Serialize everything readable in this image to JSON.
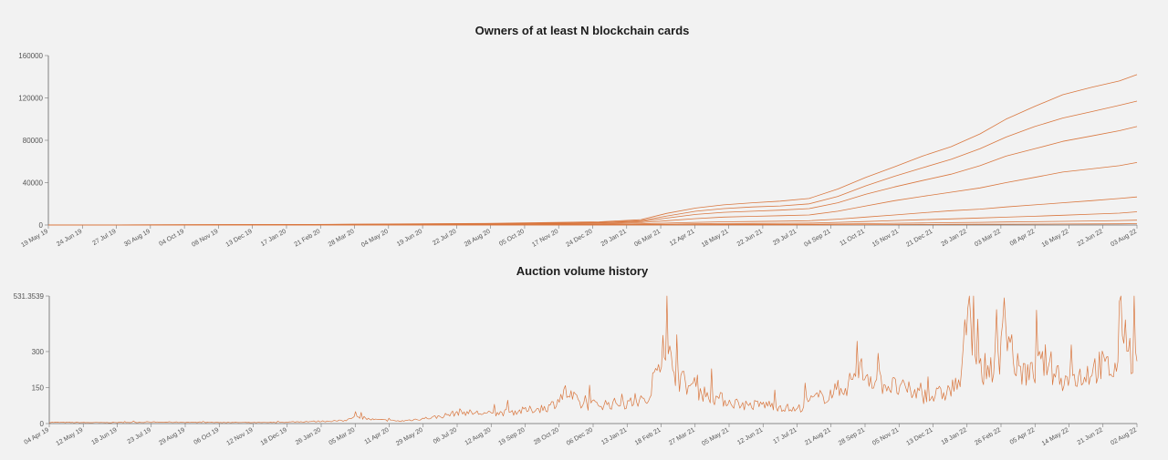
{
  "charts": [
    {
      "title": "Owners of at least N blockchain cards"
    },
    {
      "title": "Auction volume history"
    }
  ],
  "accent_color": "#d9773f",
  "background_color": "#f2f2f2",
  "chart_data": [
    {
      "type": "line",
      "title": "Owners of at least N blockchain cards",
      "xlabel": "",
      "ylabel": "",
      "x_range": [
        "2019-05-19",
        "2022-08-03"
      ],
      "ylim": [
        0,
        160000
      ],
      "y_ticks": [
        0,
        40000,
        80000,
        120000,
        160000
      ],
      "x_tick_labels": [
        "19 May 19",
        "24 Jun 19",
        "27 Jul 19",
        "30 Aug 19",
        "04 Oct 19",
        "08 Nov 19",
        "13 Dec 19",
        "17 Jan 20",
        "21 Feb 20",
        "28 Mar 20",
        "04 May 20",
        "19 Jun 20",
        "22 Jul 20",
        "28 Aug 20",
        "05 Oct 20",
        "17 Nov 20",
        "24 Dec 20",
        "29 Jan 21",
        "06 Mar 21",
        "12 Apr 21",
        "18 May 21",
        "22 Jun 21",
        "29 Jul 21",
        "04 Sep 21",
        "11 Oct 21",
        "15 Nov 21",
        "21 Dec 21",
        "26 Jan 22",
        "03 Mar 22",
        "08 Apr 22",
        "16 May 22",
        "22 Jun 22",
        "03 Aug 22"
      ],
      "grid": false,
      "legend": "none",
      "series": [
        {
          "x": [
            "2019-05-19",
            "2020-03-01",
            "2020-09-01",
            "2021-01-01",
            "2021-02-15",
            "2021-03-15",
            "2021-04-15",
            "2021-05-15",
            "2021-06-15",
            "2021-07-15",
            "2021-08-15",
            "2021-09-15",
            "2021-10-15",
            "2021-11-15",
            "2021-12-15",
            "2022-01-15",
            "2022-02-15",
            "2022-03-15",
            "2022-04-15",
            "2022-05-15",
            "2022-06-15",
            "2022-07-15",
            "2022-08-03"
          ],
          "values": [
            0,
            500,
            1500,
            3000,
            5000,
            11000,
            16000,
            19000,
            21000,
            22500,
            25000,
            34000,
            45000,
            55000,
            65000,
            74000,
            86000,
            100000,
            112000,
            123000,
            130000,
            136000,
            142000
          ]
        },
        {
          "x": [
            "2019-05-19",
            "2020-03-01",
            "2020-09-01",
            "2021-01-01",
            "2021-02-15",
            "2021-03-15",
            "2021-04-15",
            "2021-05-15",
            "2021-06-15",
            "2021-07-15",
            "2021-08-15",
            "2021-09-15",
            "2021-10-15",
            "2021-11-15",
            "2021-12-15",
            "2022-01-15",
            "2022-02-15",
            "2022-03-15",
            "2022-04-15",
            "2022-05-15",
            "2022-06-15",
            "2022-07-15",
            "2022-08-03"
          ],
          "values": [
            0,
            400,
            1200,
            2500,
            4000,
            8500,
            13000,
            15500,
            17000,
            18000,
            20000,
            27000,
            37000,
            46000,
            54000,
            62000,
            72000,
            83000,
            93000,
            101000,
            107000,
            113000,
            117000
          ]
        },
        {
          "x": [
            "2019-05-19",
            "2020-03-01",
            "2020-09-01",
            "2021-01-01",
            "2021-02-15",
            "2021-03-15",
            "2021-04-15",
            "2021-05-15",
            "2021-06-15",
            "2021-07-15",
            "2021-08-15",
            "2021-09-15",
            "2021-10-15",
            "2021-11-15",
            "2021-12-15",
            "2022-01-15",
            "2022-02-15",
            "2022-03-15",
            "2022-04-15",
            "2022-05-15",
            "2022-06-15",
            "2022-07-15",
            "2022-08-03"
          ],
          "values": [
            0,
            300,
            900,
            2000,
            3200,
            6500,
            10000,
            12000,
            13000,
            14000,
            15500,
            21000,
            29000,
            36000,
            42000,
            48000,
            56000,
            65000,
            72000,
            79000,
            84000,
            89000,
            93000
          ]
        },
        {
          "x": [
            "2019-05-19",
            "2020-03-01",
            "2020-09-01",
            "2021-01-01",
            "2021-02-15",
            "2021-03-15",
            "2021-04-15",
            "2021-05-15",
            "2021-06-15",
            "2021-07-15",
            "2021-08-15",
            "2021-09-15",
            "2021-10-15",
            "2021-11-15",
            "2021-12-15",
            "2022-01-15",
            "2022-02-15",
            "2022-03-15",
            "2022-04-15",
            "2022-05-15",
            "2022-06-15",
            "2022-07-15",
            "2022-08-03"
          ],
          "values": [
            0,
            200,
            600,
            1300,
            2200,
            4000,
            6000,
            7500,
            8200,
            8800,
            9500,
            13000,
            18000,
            23000,
            27000,
            31000,
            35000,
            40000,
            45000,
            50000,
            53000,
            56000,
            59000
          ]
        },
        {
          "x": [
            "2019-05-19",
            "2020-03-01",
            "2020-09-01",
            "2021-01-01",
            "2021-02-15",
            "2021-03-15",
            "2021-04-15",
            "2021-05-15",
            "2021-06-15",
            "2021-07-15",
            "2021-08-15",
            "2021-09-15",
            "2021-10-15",
            "2021-11-15",
            "2021-12-15",
            "2022-01-15",
            "2022-02-15",
            "2022-03-15",
            "2022-04-15",
            "2022-05-15",
            "2022-06-15",
            "2022-07-15",
            "2022-08-03"
          ],
          "values": [
            0,
            100,
            300,
            700,
            1100,
            1800,
            2500,
            3000,
            3300,
            3600,
            4000,
            5500,
            7500,
            9500,
            11500,
            13500,
            15000,
            17000,
            19000,
            21000,
            23000,
            25000,
            26500
          ]
        },
        {
          "x": [
            "2019-05-19",
            "2020-03-01",
            "2020-09-01",
            "2021-01-01",
            "2021-02-15",
            "2021-03-15",
            "2021-04-15",
            "2021-05-15",
            "2021-06-15",
            "2021-07-15",
            "2021-08-15",
            "2021-09-15",
            "2021-10-15",
            "2021-11-15",
            "2021-12-15",
            "2022-01-15",
            "2022-02-15",
            "2022-03-15",
            "2022-04-15",
            "2022-05-15",
            "2022-06-15",
            "2022-07-15",
            "2022-08-03"
          ],
          "values": [
            0,
            50,
            150,
            300,
            500,
            800,
            1100,
            1300,
            1450,
            1600,
            1800,
            2500,
            3300,
            4200,
            5000,
            5800,
            6600,
            7400,
            8300,
            9200,
            10200,
            11200,
            12500
          ]
        },
        {
          "x": [
            "2019-05-19",
            "2020-03-01",
            "2020-09-01",
            "2021-01-01",
            "2021-02-15",
            "2021-03-15",
            "2021-04-15",
            "2021-05-15",
            "2021-06-15",
            "2021-07-15",
            "2021-08-15",
            "2021-09-15",
            "2021-10-15",
            "2021-11-15",
            "2021-12-15",
            "2022-01-15",
            "2022-02-15",
            "2022-03-15",
            "2022-04-15",
            "2022-05-15",
            "2022-06-15",
            "2022-07-15",
            "2022-08-03"
          ],
          "values": [
            0,
            20,
            60,
            120,
            200,
            300,
            420,
            500,
            560,
            620,
            700,
            950,
            1250,
            1600,
            1900,
            2200,
            2500,
            2800,
            3100,
            3400,
            3800,
            4200,
            4600
          ]
        },
        {
          "x": [
            "2019-05-19",
            "2020-03-01",
            "2020-09-01",
            "2021-01-01",
            "2021-02-15",
            "2021-03-15",
            "2021-04-15",
            "2021-05-15",
            "2021-06-15",
            "2021-07-15",
            "2021-08-15",
            "2021-09-15",
            "2021-10-15",
            "2021-11-15",
            "2021-12-15",
            "2022-01-15",
            "2022-02-15",
            "2022-03-15",
            "2022-04-15",
            "2022-05-15",
            "2022-06-15",
            "2022-07-15",
            "2022-08-03"
          ],
          "values": [
            0,
            5,
            15,
            30,
            50,
            80,
            110,
            130,
            150,
            170,
            190,
            260,
            340,
            430,
            520,
            600,
            680,
            760,
            850,
            940,
            1040,
            1140,
            1250
          ]
        }
      ]
    },
    {
      "type": "line",
      "title": "Auction volume history",
      "xlabel": "",
      "ylabel": "",
      "x_range": [
        "2019-04-04",
        "2022-08-02"
      ],
      "ylim": [
        0,
        531.3539
      ],
      "y_ticks": [
        0,
        150,
        300,
        531.3539
      ],
      "y_tick_labels": [
        "0",
        "150",
        "300",
        "531.3539"
      ],
      "x_tick_labels": [
        "04 Apr 19",
        "12 May 19",
        "18 Jun 19",
        "23 Jul 19",
        "29 Aug 19",
        "06 Oct 19",
        "12 Nov 19",
        "18 Dec 19",
        "26 Jan 20",
        "05 Mar 20",
        "11 Apr 20",
        "29 May 20",
        "06 Jul 20",
        "12 Aug 20",
        "19 Sep 20",
        "28 Oct 20",
        "06 Dec 20",
        "13 Jan 21",
        "18 Feb 21",
        "27 Mar 21",
        "05 May 21",
        "12 Jun 21",
        "17 Jul 21",
        "21 Aug 21",
        "28 Sep 21",
        "05 Nov 21",
        "13 Dec 21",
        "18 Jan 22",
        "26 Feb 22",
        "05 Apr 22",
        "14 May 22",
        "21 Jun 22",
        "02 Aug 22"
      ],
      "grid": false,
      "legend": "none",
      "series": [
        {
          "x": [
            "2019-04-04",
            "2019-06-01",
            "2019-08-01",
            "2019-10-01",
            "2019-12-01",
            "2020-01-15",
            "2020-03-01",
            "2020-03-05",
            "2020-04-01",
            "2020-05-01",
            "2020-05-29",
            "2020-06-15",
            "2020-07-06",
            "2020-08-12",
            "2020-09-19",
            "2020-10-15",
            "2020-11-01",
            "2020-11-20",
            "2020-12-06",
            "2021-01-13",
            "2021-02-05",
            "2021-02-18",
            "2021-02-24",
            "2021-03-01",
            "2021-03-10",
            "2021-03-27",
            "2021-04-15",
            "2021-05-05",
            "2021-05-25",
            "2021-06-12",
            "2021-07-01",
            "2021-07-17",
            "2021-08-01",
            "2021-08-21",
            "2021-09-10",
            "2021-09-28",
            "2021-10-15",
            "2021-11-05",
            "2021-11-25",
            "2021-12-13",
            "2022-01-01",
            "2022-01-18",
            "2022-01-25",
            "2022-02-05",
            "2022-02-26",
            "2022-03-10",
            "2022-03-20",
            "2022-04-05",
            "2022-04-20",
            "2022-05-14",
            "2022-06-01",
            "2022-06-21",
            "2022-07-10",
            "2022-07-15",
            "2022-07-25",
            "2022-08-02"
          ],
          "values": [
            5,
            4,
            6,
            5,
            4,
            8,
            12,
            28,
            16,
            10,
            22,
            30,
            48,
            40,
            55,
            70,
            130,
            75,
            80,
            85,
            100,
            370,
            280,
            240,
            180,
            140,
            110,
            90,
            75,
            80,
            70,
            55,
            95,
            120,
            155,
            220,
            180,
            150,
            130,
            110,
            130,
            180,
            531,
            210,
            250,
            400,
            230,
            200,
            260,
            180,
            200,
            240,
            220,
            490,
            300,
            260
          ]
        }
      ]
    }
  ]
}
